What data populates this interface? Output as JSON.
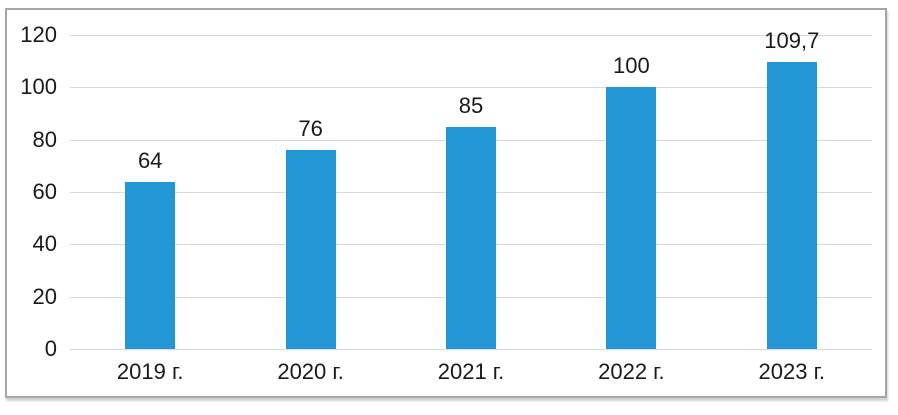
{
  "chart_data": {
    "type": "bar",
    "title": "",
    "xlabel": "",
    "ylabel": "",
    "categories": [
      "2019 г.",
      "2020 г.",
      "2021 г.",
      "2022 г.",
      "2023 г."
    ],
    "values": [
      64,
      76,
      85,
      100,
      109.7
    ],
    "value_labels": [
      "64",
      "76",
      "85",
      "100",
      "109,7"
    ],
    "ylim": [
      0,
      120
    ],
    "yticks": [
      0,
      20,
      40,
      60,
      80,
      100,
      120
    ],
    "ytick_labels": [
      "0",
      "20",
      "40",
      "60",
      "80",
      "100",
      "120"
    ],
    "grid": "horizontal",
    "legend_position": "none",
    "colors": {
      "bar": "#2397d6",
      "gridline": "#d9d9d9",
      "frame_border": "#a6a6a6",
      "text": "#1a1a1a"
    }
  }
}
